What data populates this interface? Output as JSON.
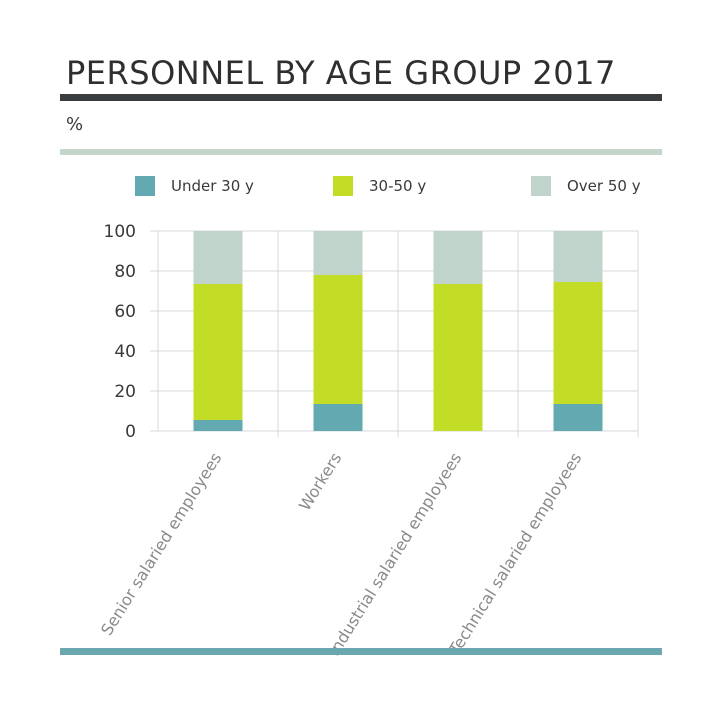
{
  "header": {
    "title": "PERSONNEL BY AGE GROUP 2017",
    "unit": "%"
  },
  "colors": {
    "under30": "#62a9b2",
    "mid": "#c3dc26",
    "over50": "#c1d4cb"
  },
  "legend": [
    {
      "label": "Under 30 y",
      "color": "#62a9b2",
      "icon": "square-swatch"
    },
    {
      "label": "30-50 y",
      "color": "#c3dc26",
      "icon": "square-swatch"
    },
    {
      "label": "Over 50 y",
      "color": "#c1d4cb",
      "icon": "square-swatch"
    }
  ],
  "chart_data": {
    "type": "bar",
    "stacked": true,
    "categories": [
      "Senior salaried employees",
      "Workers",
      "Industrial salaried employees",
      "Technical salaried employees"
    ],
    "series": [
      {
        "name": "Under 30 y",
        "values": [
          5.5,
          13.5,
          0,
          13.5
        ]
      },
      {
        "name": "30-50 y",
        "values": [
          68,
          64.5,
          73.5,
          61
        ]
      },
      {
        "name": "Over 50 y",
        "values": [
          26.5,
          22,
          26.5,
          25.5
        ]
      }
    ],
    "yticks": [
      "0",
      "20",
      "40",
      "60",
      "80",
      "100"
    ],
    "ylim": [
      0,
      100
    ],
    "grid": true,
    "legend_position": "top"
  }
}
